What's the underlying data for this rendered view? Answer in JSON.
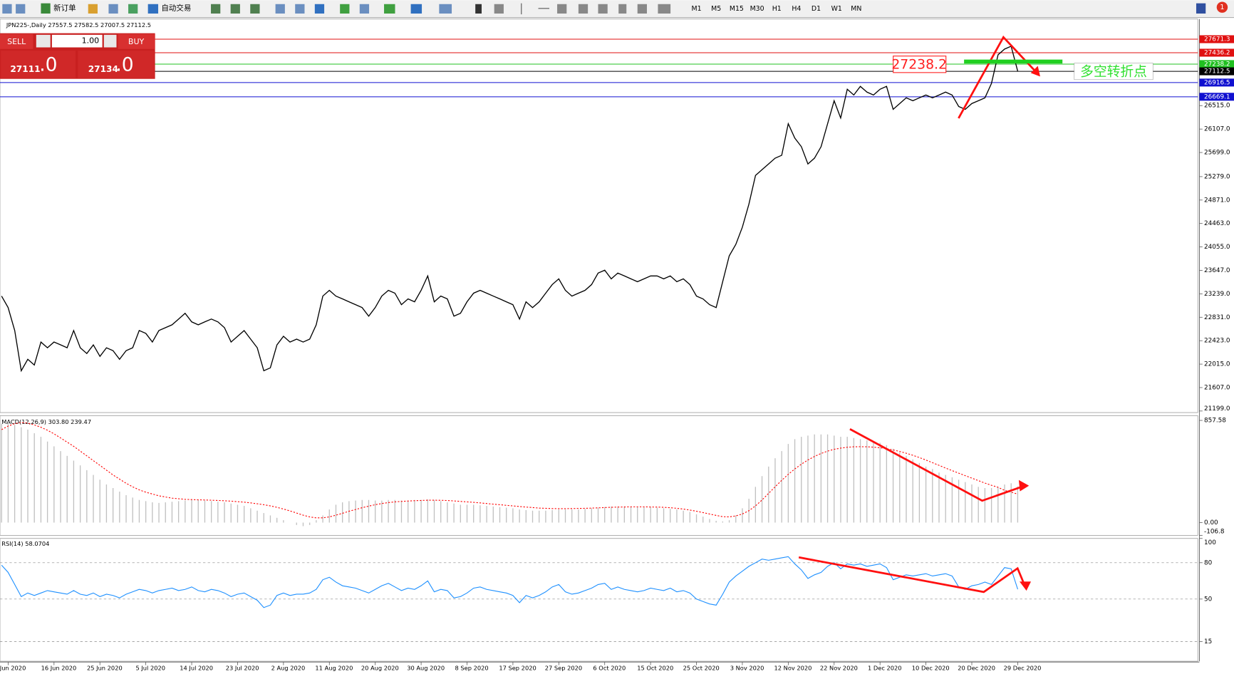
{
  "toolbar": {
    "new_order": "新订单",
    "auto_trading": "自动交易",
    "timeframes": [
      "M1",
      "M5",
      "M15",
      "M30",
      "H1",
      "H4",
      "D1",
      "W1",
      "MN"
    ],
    "notifications": "1"
  },
  "trade_panel": {
    "sell": "SELL",
    "lots": "1.00",
    "buy": "BUY",
    "bid_main": "27111",
    "bid_pips": ".0",
    "ask_main": "27134",
    "ask_pips": ".0"
  },
  "annotations": {
    "price_label": "27238.2",
    "note": "多空转折点"
  },
  "chart_data": [
    {
      "type": "line",
      "title": "JPN225-,Daily  27557.5 27582.5 27007.5 27112.5",
      "color": "#000000",
      "categories": [
        null,
        "Jun 2020",
        null,
        null,
        null,
        null,
        null,
        null,
        "16 Jun 2020",
        null,
        null,
        null,
        null,
        null,
        null,
        "25 Jun 2020",
        null,
        null,
        null,
        null,
        null,
        null,
        "5 Jul 2020",
        null,
        null,
        null,
        null,
        null,
        null,
        "14 Jul 2020",
        null,
        null,
        null,
        null,
        null,
        null,
        "23 Jul 2020",
        null,
        null,
        null,
        null,
        null,
        null,
        "2 Aug 2020",
        null,
        null,
        null,
        null,
        null,
        null,
        "11 Aug 2020",
        null,
        null,
        null,
        null,
        null,
        null,
        "20 Aug 2020",
        null,
        null,
        null,
        null,
        null,
        null,
        "30 Aug 2020",
        null,
        null,
        null,
        null,
        null,
        null,
        "8 Sep 2020",
        null,
        null,
        null,
        null,
        null,
        null,
        "17 Sep 2020",
        null,
        null,
        null,
        null,
        null,
        null,
        "27 Sep 2020",
        null,
        null,
        null,
        null,
        null,
        null,
        "6 Oct 2020",
        null,
        null,
        null,
        null,
        null,
        null,
        "15 Oct 2020",
        null,
        null,
        null,
        null,
        null,
        null,
        "25 Oct 2020",
        null,
        null,
        null,
        null,
        null,
        null,
        "3 Nov 2020",
        null,
        null,
        null,
        null,
        null,
        null,
        "12 Nov 2020",
        null,
        null,
        null,
        null,
        null,
        null,
        "22 Nov 2020",
        null,
        null,
        null,
        null,
        null,
        null,
        "1 Dec 2020",
        null,
        null,
        null,
        null,
        null,
        null,
        "10 Dec 2020",
        null,
        null,
        null,
        null,
        null,
        null,
        "20 Dec 2020",
        null,
        null,
        null,
        null,
        null,
        null,
        "29 Dec 2020"
      ],
      "values": [
        23200,
        23000,
        22600,
        21900,
        22100,
        22000,
        22400,
        22300,
        22400,
        22350,
        22300,
        22600,
        22300,
        22200,
        22350,
        22150,
        22300,
        22250,
        22100,
        22250,
        22300,
        22600,
        22550,
        22400,
        22600,
        22650,
        22700,
        22800,
        22900,
        22750,
        22700,
        22750,
        22800,
        22750,
        22650,
        22400,
        22500,
        22600,
        22450,
        22300,
        21900,
        21950,
        22350,
        22500,
        22400,
        22450,
        22400,
        22450,
        22700,
        23200,
        23300,
        23200,
        23150,
        23100,
        23050,
        23000,
        22850,
        23000,
        23200,
        23300,
        23250,
        23050,
        23150,
        23100,
        23300,
        23550,
        23100,
        23200,
        23150,
        22850,
        22900,
        23100,
        23250,
        23300,
        23250,
        23200,
        23150,
        23100,
        23050,
        22800,
        23100,
        23000,
        23100,
        23250,
        23400,
        23500,
        23300,
        23200,
        23250,
        23300,
        23400,
        23600,
        23650,
        23500,
        23600,
        23550,
        23500,
        23450,
        23500,
        23550,
        23550,
        23500,
        23550,
        23450,
        23500,
        23400,
        23200,
        23150,
        23050,
        23000,
        23450,
        23900,
        24100,
        24400,
        24800,
        25300,
        25400,
        25500,
        25600,
        25650,
        26200,
        25950,
        25800,
        25500,
        25600,
        25800,
        26200,
        26600,
        26300,
        26800,
        26700,
        26850,
        26750,
        26700,
        26800,
        26850,
        26450,
        26550,
        26650,
        26600,
        26650,
        26700,
        26650,
        26700,
        26750,
        26700,
        26500,
        26450,
        26550,
        26600,
        26650,
        26900,
        27400,
        27500,
        27550,
        27112.5
      ],
      "ylim": [
        21172,
        28022
      ],
      "yticks": [
        {
          "value": 26515,
          "label": "26515.0"
        },
        {
          "value": 26107,
          "label": "26107.0"
        },
        {
          "value": 25699,
          "label": "25699.0"
        },
        {
          "value": 25279,
          "label": "25279.0"
        },
        {
          "value": 24871,
          "label": "24871.0"
        },
        {
          "value": 24463,
          "label": "24463.0"
        },
        {
          "value": 24055,
          "label": "24055.0"
        },
        {
          "value": 23647,
          "label": "23647.0"
        },
        {
          "value": 23239,
          "label": "23239.0"
        },
        {
          "value": 22831,
          "label": "22831.0"
        },
        {
          "value": 22423,
          "label": "22423.0"
        },
        {
          "value": 22015,
          "label": "22015.0"
        },
        {
          "value": 21607,
          "label": "21607.0"
        },
        {
          "value": 21199,
          "label": "21199.0"
        }
      ],
      "levels": [
        {
          "value": 27671.3,
          "color": "#e01010"
        },
        {
          "value": 27436.2,
          "color": "#e01010"
        },
        {
          "value": 27238.2,
          "color": "#20c020"
        },
        {
          "value": 27112.5,
          "color": "#000000"
        },
        {
          "value": 26916.5,
          "color": "#1010d0"
        },
        {
          "value": 26669.1,
          "color": "#1010d0"
        }
      ]
    },
    {
      "type": "macd",
      "title": "MACD(12,26,9) 303.80 239.47",
      "series": [
        {
          "color": "#c0c0c0",
          "values": [
            830,
            840,
            820,
            800,
            780,
            750,
            720,
            680,
            640,
            600,
            560,
            520,
            480,
            440,
            400,
            360,
            320,
            290,
            260,
            230,
            210,
            190,
            180,
            170,
            165,
            170,
            175,
            180,
            185,
            190,
            190,
            185,
            180,
            175,
            170,
            160,
            150,
            140,
            120,
            100,
            80,
            60,
            40,
            20,
            0,
            -20,
            -30,
            -20,
            20,
            60,
            110,
            150,
            170,
            180,
            185,
            190,
            190,
            185,
            185,
            190,
            190,
            185,
            185,
            190,
            190,
            195,
            190,
            180,
            170,
            160,
            150,
            150,
            150,
            145,
            140,
            135,
            130,
            125,
            120,
            110,
            105,
            100,
            100,
            100,
            105,
            110,
            110,
            110,
            110,
            115,
            120,
            125,
            130,
            135,
            135,
            135,
            135,
            130,
            130,
            130,
            125,
            120,
            115,
            110,
            100,
            90,
            70,
            50,
            30,
            15,
            10,
            20,
            60,
            120,
            200,
            300,
            390,
            470,
            540,
            600,
            660,
            700,
            720,
            730,
            740,
            740,
            740,
            730,
            720,
            720,
            710,
            700,
            690,
            680,
            670,
            650,
            620,
            590,
            560,
            530,
            500,
            470,
            450,
            420,
            400,
            380,
            360,
            340,
            320,
            300,
            290,
            290,
            300,
            320,
            330,
            303.8
          ]
        },
        {
          "color": "#ff0000",
          "values": [
            780,
            810,
            830,
            840,
            835,
            820,
            800,
            775,
            745,
            710,
            675,
            640,
            600,
            560,
            520,
            480,
            440,
            400,
            365,
            330,
            300,
            275,
            255,
            240,
            225,
            215,
            205,
            200,
            195,
            193,
            191,
            190,
            188,
            186,
            183,
            180,
            176,
            171,
            165,
            158,
            150,
            140,
            128,
            114,
            98,
            80,
            62,
            48,
            40,
            40,
            48,
            62,
            78,
            95,
            110,
            125,
            138,
            150,
            160,
            168,
            174,
            178,
            181,
            184,
            186,
            188,
            188,
            187,
            185,
            182,
            178,
            174,
            170,
            165,
            160,
            155,
            150,
            145,
            140,
            135,
            130,
            126,
            122,
            120,
            118,
            117,
            117,
            118,
            119,
            120,
            122,
            124,
            126,
            128,
            130,
            131,
            132,
            132,
            132,
            131,
            130,
            128,
            125,
            120,
            114,
            105,
            95,
            84,
            72,
            60,
            50,
            48,
            56,
            72,
            100,
            140,
            190,
            245,
            300,
            355,
            405,
            450,
            490,
            525,
            555,
            580,
            600,
            615,
            625,
            632,
            636,
            637,
            636,
            633,
            628,
            620,
            610,
            597,
            582,
            565,
            546,
            525,
            503,
            480,
            458,
            436,
            415,
            394,
            373,
            352,
            332,
            313,
            296,
            270,
            255,
            239.47
          ]
        }
      ],
      "ylim": [
        -106.8,
        897
      ],
      "yticks": [
        857.58,
        {
          "value": 0,
          "label": "0.00"
        },
        -106.8
      ]
    },
    {
      "type": "rsi",
      "title": "RSI(14) 58.0704",
      "color": "#1e90ff",
      "values": [
        78,
        72,
        62,
        52,
        55,
        53,
        55,
        57,
        56,
        55,
        54,
        57,
        54,
        53,
        55,
        52,
        54,
        53,
        51,
        54,
        56,
        58,
        57,
        55,
        57,
        58,
        59,
        57,
        58,
        60,
        57,
        56,
        58,
        57,
        55,
        52,
        54,
        55,
        52,
        49,
        43,
        45,
        53,
        55,
        53,
        54,
        54,
        55,
        58,
        66,
        68,
        64,
        61,
        60,
        59,
        57,
        55,
        58,
        61,
        63,
        60,
        57,
        59,
        58,
        61,
        65,
        56,
        58,
        57,
        51,
        52,
        55,
        59,
        60,
        58,
        57,
        56,
        55,
        53,
        47,
        53,
        51,
        53,
        56,
        60,
        62,
        56,
        54,
        55,
        57,
        59,
        62,
        63,
        58,
        60,
        58,
        57,
        56,
        57,
        59,
        58,
        57,
        59,
        56,
        57,
        55,
        50,
        48,
        46,
        45,
        54,
        64,
        69,
        73,
        77,
        80,
        83,
        82,
        83,
        84,
        85,
        79,
        74,
        67,
        70,
        72,
        77,
        80,
        75,
        79,
        78,
        79,
        77,
        78,
        79,
        76,
        66,
        68,
        70,
        69,
        70,
        71,
        69,
        70,
        71,
        69,
        60,
        58,
        61,
        62,
        64,
        62,
        69,
        76,
        75,
        58.0704
      ],
      "ylim": [
        0,
        100
      ],
      "yticks": [
        100,
        80,
        50,
        15
      ],
      "grid": true
    }
  ]
}
